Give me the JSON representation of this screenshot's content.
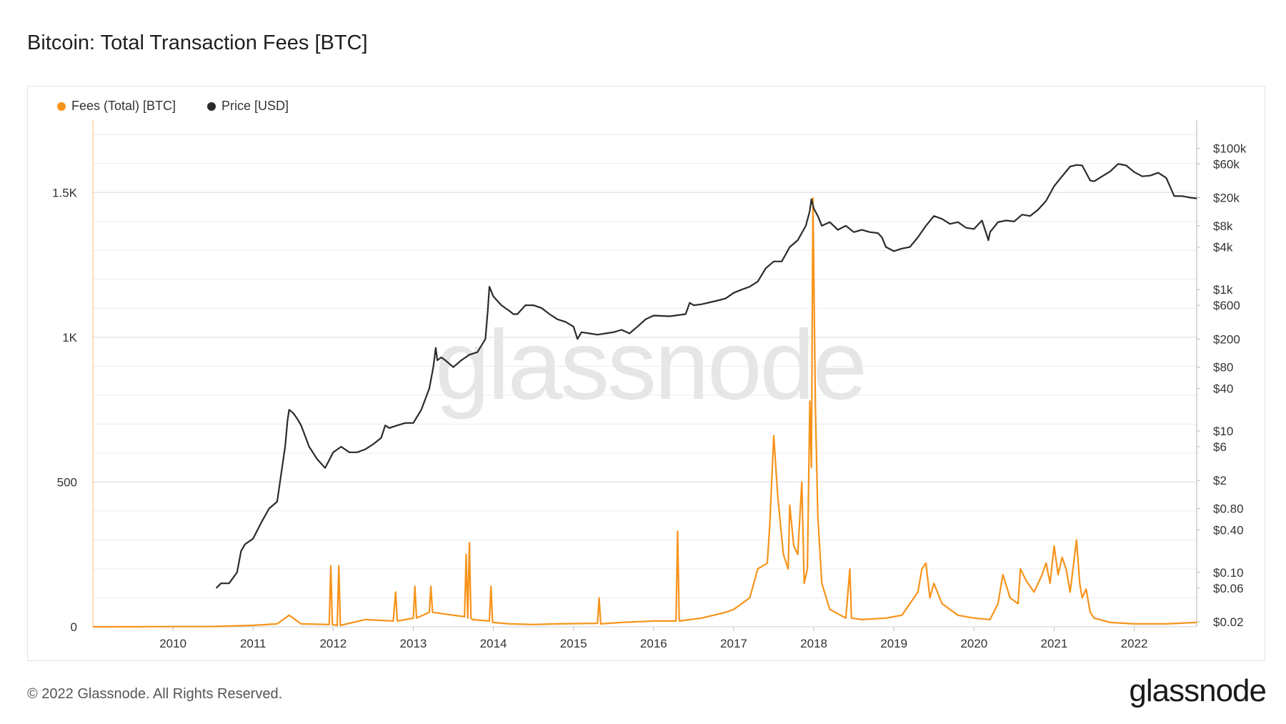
{
  "title": "Bitcoin: Total Transaction Fees [BTC]",
  "footer": "© 2022 Glassnode. All Rights Reserved.",
  "brand": "glassnode",
  "watermark": "glassnode",
  "colors": {
    "fees": "#f7931a",
    "price": "#2b2b2b",
    "grid": "#ececec",
    "watermark": "#e6e6e6"
  },
  "legend": [
    {
      "label": "Fees (Total) [BTC]",
      "color": "#f7931a"
    },
    {
      "label": "Price [USD]",
      "color": "#2b2b2b"
    }
  ],
  "chart_data": {
    "type": "line",
    "title": "Bitcoin: Total Transaction Fees [BTC]",
    "legend_position": "top-left",
    "grid": true,
    "x_range": [
      2009.0,
      2022.78
    ],
    "x_ticks": [
      "2010",
      "2011",
      "2012",
      "2013",
      "2014",
      "2015",
      "2016",
      "2017",
      "2018",
      "2019",
      "2020",
      "2021",
      "2022"
    ],
    "y_left": {
      "label": "",
      "range": [
        0,
        1750
      ],
      "ticks": [
        0,
        500,
        1000,
        1500
      ],
      "tick_labels": [
        "0",
        "500",
        "1K",
        "1.5K"
      ]
    },
    "y_right": {
      "label": "",
      "scale": "log",
      "range": [
        0.017,
        250000
      ],
      "ticks": [
        0.02,
        0.06,
        0.1,
        0.4,
        0.8,
        2,
        6,
        10,
        40,
        80,
        200,
        600,
        1000,
        4000,
        8000,
        20000,
        60000,
        100000
      ],
      "tick_labels": [
        "$0.02",
        "$0.06",
        "$0.10",
        "$0.40",
        "$0.80",
        "$2",
        "$6",
        "$10",
        "$40",
        "$80",
        "$200",
        "$600",
        "$1k",
        "$4k",
        "$8k",
        "$20k",
        "$60k",
        "$100k"
      ]
    },
    "series": [
      {
        "name": "Fees (Total) [BTC]",
        "axis": "left",
        "color": "#f7931a",
        "x": [
          2009.0,
          2010.5,
          2011.0,
          2011.3,
          2011.45,
          2011.6,
          2011.95,
          2011.97,
          2011.99,
          2012.05,
          2012.07,
          2012.09,
          2012.4,
          2012.75,
          2012.78,
          2012.8,
          2013.0,
          2013.02,
          2013.04,
          2013.2,
          2013.22,
          2013.24,
          2013.5,
          2013.64,
          2013.66,
          2013.68,
          2013.7,
          2013.72,
          2013.74,
          2013.95,
          2013.97,
          2013.99,
          2014.2,
          2014.5,
          2014.8,
          2015.3,
          2015.32,
          2015.34,
          2015.6,
          2016.0,
          2016.28,
          2016.3,
          2016.32,
          2016.6,
          2016.9,
          2017.0,
          2017.2,
          2017.3,
          2017.42,
          2017.45,
          2017.5,
          2017.55,
          2017.62,
          2017.68,
          2017.7,
          2017.75,
          2017.8,
          2017.85,
          2017.88,
          2017.92,
          2017.95,
          2017.97,
          2017.99,
          2018.02,
          2018.05,
          2018.1,
          2018.2,
          2018.4,
          2018.45,
          2018.47,
          2018.6,
          2018.9,
          2019.1,
          2019.3,
          2019.35,
          2019.4,
          2019.45,
          2019.5,
          2019.6,
          2019.8,
          2020.0,
          2020.2,
          2020.3,
          2020.36,
          2020.45,
          2020.55,
          2020.58,
          2020.65,
          2020.75,
          2020.85,
          2020.9,
          2020.95,
          2021.0,
          2021.05,
          2021.1,
          2021.15,
          2021.2,
          2021.28,
          2021.32,
          2021.35,
          2021.4,
          2021.45,
          2021.5,
          2021.7,
          2022.0,
          2022.4,
          2022.78
        ],
        "y": [
          0,
          1,
          5,
          10,
          40,
          10,
          8,
          210,
          8,
          5,
          210,
          5,
          25,
          20,
          120,
          20,
          30,
          140,
          30,
          50,
          140,
          50,
          40,
          35,
          250,
          30,
          290,
          30,
          25,
          20,
          140,
          15,
          10,
          8,
          10,
          12,
          100,
          10,
          15,
          20,
          20,
          330,
          20,
          30,
          50,
          60,
          100,
          200,
          220,
          350,
          660,
          450,
          250,
          200,
          420,
          280,
          250,
          500,
          150,
          200,
          780,
          550,
          1480,
          760,
          380,
          150,
          60,
          30,
          200,
          30,
          25,
          30,
          40,
          120,
          200,
          220,
          100,
          150,
          80,
          40,
          30,
          25,
          80,
          180,
          100,
          80,
          200,
          160,
          120,
          180,
          220,
          150,
          280,
          180,
          240,
          200,
          120,
          300,
          150,
          100,
          130,
          50,
          30,
          15,
          10,
          10,
          15
        ]
      },
      {
        "name": "Price [USD]",
        "axis": "right",
        "color": "#2b2b2b",
        "x": [
          2010.54,
          2010.6,
          2010.7,
          2010.8,
          2010.85,
          2010.9,
          2011.0,
          2011.1,
          2011.2,
          2011.3,
          2011.4,
          2011.43,
          2011.45,
          2011.5,
          2011.55,
          2011.6,
          2011.7,
          2011.8,
          2011.9,
          2012.0,
          2012.1,
          2012.2,
          2012.3,
          2012.4,
          2012.5,
          2012.6,
          2012.65,
          2012.7,
          2012.8,
          2012.9,
          2013.0,
          2013.1,
          2013.2,
          2013.25,
          2013.28,
          2013.3,
          2013.35,
          2013.4,
          2013.5,
          2013.6,
          2013.7,
          2013.8,
          2013.9,
          2013.93,
          2013.95,
          2014.0,
          2014.1,
          2014.2,
          2014.25,
          2014.3,
          2014.4,
          2014.5,
          2014.6,
          2014.7,
          2014.8,
          2014.9,
          2015.0,
          2015.05,
          2015.1,
          2015.2,
          2015.3,
          2015.4,
          2015.5,
          2015.6,
          2015.7,
          2015.8,
          2015.9,
          2016.0,
          2016.2,
          2016.4,
          2016.45,
          2016.5,
          2016.6,
          2016.8,
          2016.9,
          2017.0,
          2017.1,
          2017.2,
          2017.3,
          2017.4,
          2017.5,
          2017.6,
          2017.7,
          2017.8,
          2017.9,
          2017.95,
          2017.97,
          2018.0,
          2018.05,
          2018.1,
          2018.2,
          2018.3,
          2018.4,
          2018.5,
          2018.6,
          2018.7,
          2018.8,
          2018.85,
          2018.9,
          2019.0,
          2019.1,
          2019.2,
          2019.3,
          2019.4,
          2019.5,
          2019.6,
          2019.7,
          2019.8,
          2019.9,
          2020.0,
          2020.1,
          2020.18,
          2020.2,
          2020.3,
          2020.4,
          2020.5,
          2020.6,
          2020.7,
          2020.8,
          2020.9,
          2021.0,
          2021.1,
          2021.2,
          2021.28,
          2021.35,
          2021.45,
          2021.5,
          2021.6,
          2021.7,
          2021.8,
          2021.9,
          2022.0,
          2022.1,
          2022.2,
          2022.3,
          2022.4,
          2022.5,
          2022.6,
          2022.7,
          2022.78
        ],
        "y": [
          0.06,
          0.07,
          0.07,
          0.1,
          0.2,
          0.25,
          0.3,
          0.5,
          0.8,
          1,
          6,
          14,
          20,
          18,
          15,
          12,
          6,
          4,
          3,
          5,
          6,
          5,
          5,
          5.5,
          6.5,
          8,
          12,
          11,
          12,
          13,
          13,
          20,
          40,
          80,
          150,
          100,
          110,
          100,
          80,
          100,
          120,
          130,
          200,
          500,
          1100,
          800,
          600,
          500,
          450,
          450,
          600,
          600,
          550,
          450,
          380,
          350,
          300,
          200,
          250,
          240,
          230,
          240,
          250,
          270,
          240,
          300,
          380,
          430,
          420,
          450,
          650,
          600,
          620,
          700,
          750,
          900,
          1000,
          1100,
          1300,
          2000,
          2500,
          2500,
          4000,
          5000,
          8000,
          13000,
          19000,
          14000,
          11000,
          8000,
          9000,
          7000,
          8000,
          6500,
          7000,
          6500,
          6300,
          5500,
          4000,
          3500,
          3800,
          4000,
          5500,
          8000,
          11000,
          10000,
          8500,
          9000,
          7500,
          7200,
          9500,
          5000,
          6500,
          9000,
          9500,
          9200,
          11500,
          11000,
          13500,
          18000,
          29000,
          40000,
          55000,
          58000,
          57000,
          35000,
          34000,
          40000,
          47000,
          60000,
          57000,
          46000,
          40000,
          41000,
          45000,
          38000,
          21000,
          21000,
          20000,
          19500
        ]
      }
    ]
  }
}
